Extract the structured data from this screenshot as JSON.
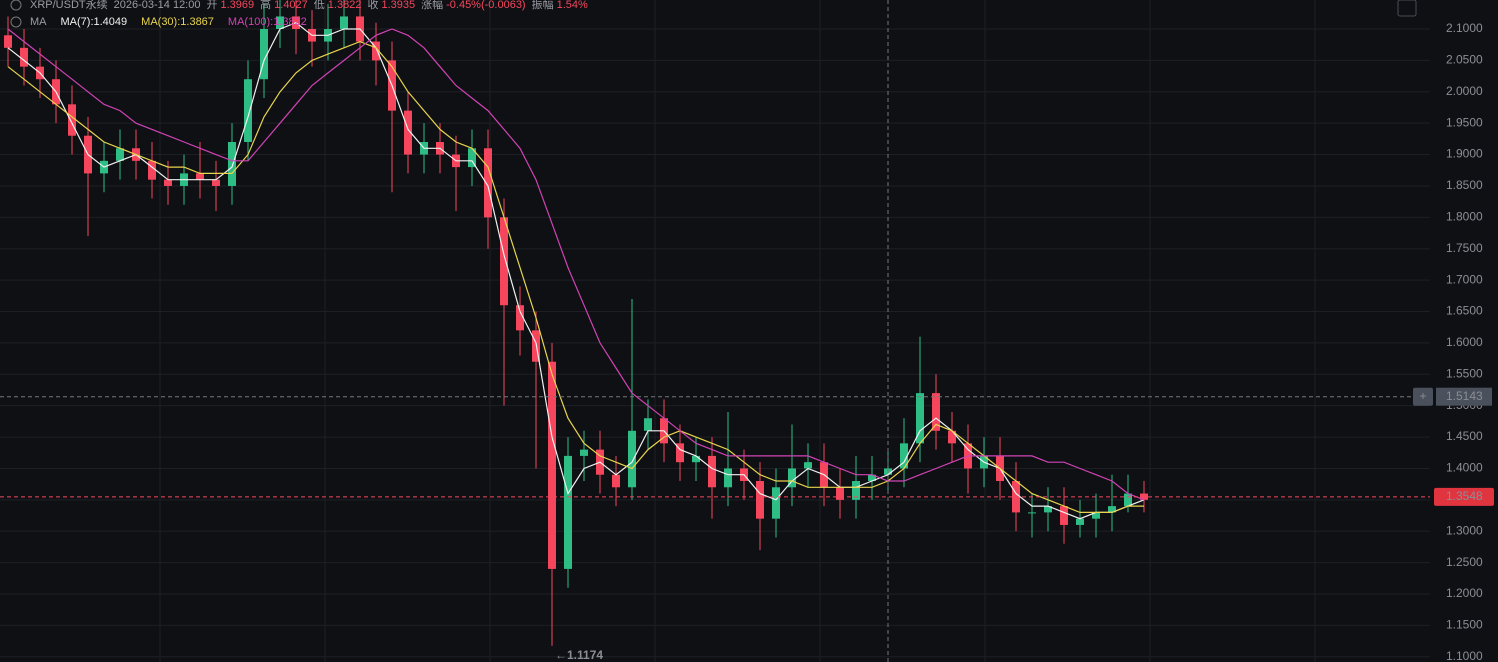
{
  "header": {
    "title": "XRP/USDT永续",
    "time": "2026-03-14 12:00",
    "items": [
      {
        "label": "开",
        "value": "1.3969"
      },
      {
        "label": "高",
        "value": "1.4027"
      },
      {
        "label": "低",
        "value": "1.3822"
      },
      {
        "label": "收",
        "value": "1.3935"
      },
      {
        "label": "涨幅",
        "value": "-0.45%(-0.0063)"
      },
      {
        "label": "振幅",
        "value": "1.54%"
      }
    ],
    "indicator": "MA"
  },
  "chart_data": {
    "type": "candlestick",
    "ylim": [
      1.0917,
      2.1462
    ],
    "yticks": [
      {
        "value": 1.1,
        "label": "1.1000"
      },
      {
        "value": 1.15,
        "label": "1.1500"
      },
      {
        "value": 1.2,
        "label": "1.2000"
      },
      {
        "value": 1.25,
        "label": "1.2500"
      },
      {
        "value": 1.3,
        "label": "1.3000"
      },
      {
        "value": 1.35,
        "label": "1.3500"
      },
      {
        "value": 1.4,
        "label": "1.4000"
      },
      {
        "value": 1.45,
        "label": "1.4500"
      },
      {
        "value": 1.5,
        "label": "1.5000"
      },
      {
        "value": 1.55,
        "label": "1.5500"
      },
      {
        "value": 1.6,
        "label": "1.6000"
      },
      {
        "value": 1.65,
        "label": "1.6500"
      },
      {
        "value": 1.7,
        "label": "1.7000"
      },
      {
        "value": 1.75,
        "label": "1.7500"
      },
      {
        "value": 1.8,
        "label": "1.8000"
      },
      {
        "value": 1.85,
        "label": "1.8500"
      },
      {
        "value": 1.9,
        "label": "1.9000"
      },
      {
        "value": 1.95,
        "label": "1.9500"
      },
      {
        "value": 2.0,
        "label": "2.0000"
      },
      {
        "value": 2.05,
        "label": "2.0500"
      },
      {
        "value": 2.1,
        "label": "2.1000"
      }
    ],
    "grid": true,
    "crosshair": 1.5143,
    "last_price": 1.3548,
    "low_marker_index": 34,
    "series": [
      {
        "name": "XRP/USDT永续",
        "type": "candlestick",
        "up_color": "#2ebd85",
        "down_color": "#f6465d",
        "open": [
          2.09,
          2.07,
          2.04,
          2.02,
          1.98,
          1.93,
          1.87,
          1.89,
          1.91,
          1.89,
          1.86,
          1.85,
          1.87,
          1.86,
          1.85,
          1.92,
          2.02,
          2.1,
          2.12,
          2.1,
          2.08,
          2.1,
          2.12,
          2.08,
          2.05,
          1.97,
          1.9,
          1.92,
          1.9,
          1.88,
          1.91,
          1.8,
          1.66,
          1.62,
          1.57,
          1.24,
          1.42,
          1.43,
          1.39,
          1.37,
          1.46,
          1.48,
          1.44,
          1.41,
          1.42,
          1.37,
          1.4,
          1.38,
          1.32,
          1.37,
          1.4,
          1.41,
          1.37,
          1.35,
          1.38,
          1.39,
          1.4,
          1.44,
          1.52,
          1.46,
          1.44,
          1.4,
          1.42,
          1.38,
          1.33,
          1.33,
          1.34,
          1.31,
          1.32,
          1.33,
          1.34,
          1.36
        ],
        "high": [
          2.12,
          2.1,
          2.07,
          2.05,
          2.01,
          1.96,
          1.92,
          1.94,
          1.94,
          1.92,
          1.89,
          1.9,
          1.92,
          1.89,
          1.95,
          2.05,
          2.14,
          2.16,
          2.15,
          2.13,
          2.14,
          2.16,
          2.15,
          2.11,
          2.08,
          2.0,
          1.95,
          1.95,
          1.93,
          1.94,
          1.94,
          1.83,
          1.69,
          1.65,
          1.6,
          1.45,
          1.46,
          1.46,
          1.42,
          1.67,
          1.51,
          1.51,
          1.47,
          1.45,
          1.45,
          1.49,
          1.43,
          1.41,
          1.4,
          1.47,
          1.44,
          1.44,
          1.4,
          1.42,
          1.42,
          1.43,
          1.48,
          1.61,
          1.55,
          1.49,
          1.47,
          1.45,
          1.45,
          1.41,
          1.36,
          1.37,
          1.37,
          1.35,
          1.36,
          1.39,
          1.39,
          1.38
        ],
        "low": [
          2.04,
          2.01,
          1.99,
          1.95,
          1.9,
          1.77,
          1.84,
          1.86,
          1.86,
          1.83,
          1.82,
          1.82,
          1.83,
          1.81,
          1.82,
          1.89,
          1.99,
          2.07,
          2.06,
          2.04,
          2.05,
          2.07,
          2.05,
          2.01,
          1.84,
          1.87,
          1.87,
          1.87,
          1.81,
          1.85,
          1.75,
          1.5,
          1.58,
          1.4,
          1.1174,
          1.21,
          1.38,
          1.36,
          1.34,
          1.35,
          1.43,
          1.41,
          1.38,
          1.38,
          1.32,
          1.34,
          1.35,
          1.27,
          1.29,
          1.34,
          1.37,
          1.34,
          1.32,
          1.32,
          1.35,
          1.36,
          1.37,
          1.41,
          1.43,
          1.41,
          1.36,
          1.37,
          1.35,
          1.3,
          1.29,
          1.3,
          1.28,
          1.29,
          1.29,
          1.3,
          1.33,
          1.33
        ],
        "close": [
          2.07,
          2.04,
          2.02,
          1.98,
          1.93,
          1.87,
          1.89,
          1.91,
          1.89,
          1.86,
          1.85,
          1.87,
          1.86,
          1.85,
          1.92,
          2.02,
          2.1,
          2.12,
          2.1,
          2.08,
          2.1,
          2.12,
          2.08,
          2.05,
          1.97,
          1.9,
          1.92,
          1.9,
          1.88,
          1.91,
          1.8,
          1.66,
          1.62,
          1.57,
          1.24,
          1.42,
          1.43,
          1.39,
          1.37,
          1.46,
          1.48,
          1.44,
          1.41,
          1.42,
          1.37,
          1.4,
          1.38,
          1.32,
          1.37,
          1.4,
          1.41,
          1.37,
          1.35,
          1.38,
          1.39,
          1.4,
          1.44,
          1.52,
          1.46,
          1.44,
          1.4,
          1.42,
          1.38,
          1.33,
          1.33,
          1.34,
          1.31,
          1.32,
          1.33,
          1.34,
          1.36,
          1.35
        ]
      },
      {
        "name": "MA(7):1.4049",
        "type": "line",
        "color": "#f0f0f0",
        "values": [
          2.07,
          2.05,
          2.03,
          2.0,
          1.95,
          1.9,
          1.88,
          1.89,
          1.9,
          1.88,
          1.86,
          1.86,
          1.86,
          1.86,
          1.88,
          1.96,
          2.05,
          2.1,
          2.11,
          2.09,
          2.09,
          2.1,
          2.1,
          2.07,
          2.01,
          1.94,
          1.91,
          1.91,
          1.89,
          1.89,
          1.85,
          1.74,
          1.65,
          1.6,
          1.45,
          1.36,
          1.4,
          1.41,
          1.39,
          1.41,
          1.46,
          1.46,
          1.43,
          1.42,
          1.4,
          1.39,
          1.39,
          1.36,
          1.35,
          1.38,
          1.4,
          1.39,
          1.37,
          1.37,
          1.38,
          1.39,
          1.41,
          1.46,
          1.48,
          1.46,
          1.43,
          1.41,
          1.4,
          1.36,
          1.34,
          1.34,
          1.33,
          1.32,
          1.33,
          1.33,
          1.34,
          1.35
        ]
      },
      {
        "name": "MA(30):1.3867",
        "type": "line",
        "color": "#e8d44d",
        "values": [
          2.04,
          2.02,
          2.0,
          1.98,
          1.96,
          1.94,
          1.92,
          1.91,
          1.9,
          1.89,
          1.88,
          1.88,
          1.87,
          1.87,
          1.87,
          1.9,
          1.96,
          2.0,
          2.03,
          2.05,
          2.06,
          2.07,
          2.08,
          2.07,
          2.04,
          2.0,
          1.97,
          1.94,
          1.92,
          1.91,
          1.88,
          1.8,
          1.72,
          1.64,
          1.55,
          1.48,
          1.44,
          1.42,
          1.41,
          1.4,
          1.43,
          1.45,
          1.46,
          1.45,
          1.44,
          1.43,
          1.41,
          1.39,
          1.38,
          1.38,
          1.37,
          1.37,
          1.37,
          1.37,
          1.37,
          1.38,
          1.4,
          1.44,
          1.47,
          1.46,
          1.44,
          1.42,
          1.4,
          1.38,
          1.36,
          1.35,
          1.34,
          1.33,
          1.33,
          1.33,
          1.34,
          1.34
        ]
      },
      {
        "name": "MA(100):1.3822",
        "type": "line",
        "color": "#d043b5",
        "values": [
          2.1,
          2.08,
          2.06,
          2.04,
          2.02,
          2.0,
          1.98,
          1.97,
          1.95,
          1.94,
          1.93,
          1.92,
          1.91,
          1.9,
          1.89,
          1.89,
          1.92,
          1.95,
          1.98,
          2.01,
          2.03,
          2.05,
          2.07,
          2.09,
          2.1,
          2.09,
          2.07,
          2.04,
          2.01,
          1.99,
          1.97,
          1.94,
          1.91,
          1.86,
          1.79,
          1.72,
          1.66,
          1.6,
          1.56,
          1.52,
          1.5,
          1.48,
          1.46,
          1.44,
          1.43,
          1.42,
          1.42,
          1.42,
          1.42,
          1.42,
          1.42,
          1.41,
          1.4,
          1.39,
          1.39,
          1.38,
          1.38,
          1.39,
          1.4,
          1.41,
          1.42,
          1.42,
          1.42,
          1.42,
          1.42,
          1.41,
          1.41,
          1.4,
          1.39,
          1.38,
          1.36,
          1.35
        ]
      }
    ]
  }
}
